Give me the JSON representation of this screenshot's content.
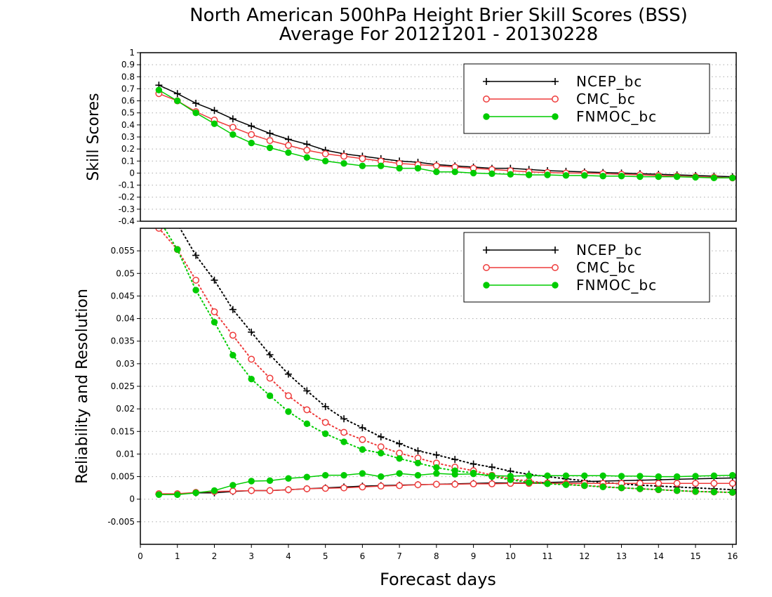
{
  "title": {
    "line1": "North American 500hPa Height Brier Skill Scores (BSS)",
    "line2": "Average For 20121201 - 20130228"
  },
  "colors": {
    "NCEP_bc": "#000000",
    "CMC_bc": "#ee3b3b",
    "FNMOC_bc": "#00cc00"
  },
  "chart_data": [
    {
      "type": "line",
      "ylabel": "Skill Scores",
      "xlabel": "",
      "xlim": [
        0,
        16.1
      ],
      "ylim": [
        -0.4,
        1
      ],
      "yticks": [
        "1",
        "0.9",
        "0.8",
        "0.7",
        "0.6",
        "0.5",
        "0.4",
        "0.3",
        "0.2",
        "0.1",
        "0",
        "-0.1",
        "-0.2",
        "-0.3",
        "-0.4"
      ],
      "grid": true,
      "legend_position": "top-right",
      "x": [
        0.5,
        1,
        1.5,
        2,
        2.5,
        3,
        3.5,
        4,
        4.5,
        5,
        5.5,
        6,
        6.5,
        7,
        7.5,
        8,
        8.5,
        9,
        9.5,
        10,
        10.5,
        11,
        11.5,
        12,
        12.5,
        13,
        13.5,
        14,
        14.5,
        15,
        15.5,
        16
      ],
      "series": [
        {
          "name": "NCEP_bc",
          "marker": "plus",
          "style": "solid",
          "values": [
            0.73,
            0.66,
            0.58,
            0.52,
            0.45,
            0.39,
            0.33,
            0.28,
            0.24,
            0.19,
            0.16,
            0.14,
            0.12,
            0.1,
            0.09,
            0.07,
            0.06,
            0.05,
            0.04,
            0.04,
            0.03,
            0.02,
            0.015,
            0.01,
            0.005,
            0.0,
            -0.005,
            -0.01,
            -0.015,
            -0.02,
            -0.025,
            -0.03
          ]
        },
        {
          "name": "CMC_bc",
          "marker": "open-circle",
          "style": "solid",
          "values": [
            0.66,
            0.6,
            0.51,
            0.44,
            0.38,
            0.32,
            0.27,
            0.23,
            0.19,
            0.16,
            0.14,
            0.12,
            0.1,
            0.08,
            0.07,
            0.06,
            0.05,
            0.04,
            0.03,
            0.02,
            0.01,
            0.005,
            0.0,
            0.0,
            -0.005,
            -0.01,
            -0.015,
            -0.02,
            -0.025,
            -0.03,
            -0.035,
            -0.04
          ]
        },
        {
          "name": "FNMOC_bc",
          "marker": "filled-circle",
          "style": "solid",
          "values": [
            0.69,
            0.6,
            0.5,
            0.41,
            0.32,
            0.25,
            0.21,
            0.17,
            0.13,
            0.1,
            0.08,
            0.06,
            0.06,
            0.04,
            0.04,
            0.01,
            0.01,
            0.0,
            -0.005,
            -0.01,
            -0.015,
            -0.015,
            -0.02,
            -0.02,
            -0.025,
            -0.025,
            -0.03,
            -0.03,
            -0.03,
            -0.035,
            -0.04,
            -0.04
          ]
        }
      ]
    },
    {
      "type": "line",
      "ylabel": "Reliability and Resolution",
      "xlabel": "Forecast days",
      "xlim": [
        0,
        16.1
      ],
      "ylim": [
        -0.01,
        0.06
      ],
      "xticks": [
        "0",
        "1",
        "2",
        "3",
        "4",
        "5",
        "6",
        "7",
        "8",
        "9",
        "10",
        "11",
        "12",
        "13",
        "14",
        "15",
        "16"
      ],
      "yticks": [
        "0.055",
        "0.05",
        "0.045",
        "0.04",
        "0.035",
        "0.03",
        "0.025",
        "0.02",
        "0.015",
        "0.01",
        "0.005",
        "0",
        "-0.005"
      ],
      "grid": true,
      "legend_position": "top-right",
      "x": [
        0.5,
        1,
        1.5,
        2,
        2.5,
        3,
        3.5,
        4,
        4.5,
        5,
        5.5,
        6,
        6.5,
        7,
        7.5,
        8,
        8.5,
        9,
        9.5,
        10,
        10.5,
        11,
        11.5,
        12,
        12.5,
        13,
        13.5,
        14,
        14.5,
        15,
        15.5,
        16
      ],
      "series": [
        {
          "name": "NCEP_bc",
          "component": "reliability",
          "marker": "plus",
          "style": "solid",
          "values": [
            0.0011,
            0.0011,
            0.0014,
            0.0014,
            0.0017,
            0.0019,
            0.0019,
            0.0021,
            0.0023,
            0.0025,
            0.0027,
            0.0029,
            0.003,
            0.0031,
            0.0032,
            0.0033,
            0.0034,
            0.0035,
            0.0036,
            0.0036,
            0.0036,
            0.0037,
            0.0038,
            0.0039,
            0.004,
            0.0041,
            0.0042,
            0.0043,
            0.0044,
            0.0045,
            0.0046,
            0.0047
          ]
        },
        {
          "name": "NCEP_bc",
          "component": "resolution",
          "marker": "plus",
          "style": "dotted",
          "values": [
            0.064,
            0.061,
            0.054,
            0.0485,
            0.042,
            0.037,
            0.032,
            0.0277,
            0.024,
            0.0205,
            0.0178,
            0.0158,
            0.0138,
            0.0123,
            0.0107,
            0.0098,
            0.0088,
            0.0078,
            0.0071,
            0.0062,
            0.0055,
            0.005,
            0.0045,
            0.0041,
            0.0037,
            0.0034,
            0.0031,
            0.0029,
            0.0027,
            0.0025,
            0.0023,
            0.0021
          ]
        },
        {
          "name": "CMC_bc",
          "component": "reliability",
          "marker": "open-circle",
          "style": "solid",
          "values": [
            0.0012,
            0.0012,
            0.0015,
            0.0017,
            0.0018,
            0.0019,
            0.0019,
            0.0021,
            0.0023,
            0.0024,
            0.0025,
            0.0027,
            0.0029,
            0.003,
            0.0032,
            0.0033,
            0.0033,
            0.0034,
            0.0034,
            0.0035,
            0.0035,
            0.0035,
            0.0035,
            0.0035,
            0.0035,
            0.0035,
            0.0035,
            0.0035,
            0.0035,
            0.0035,
            0.0035,
            0.0035
          ]
        },
        {
          "name": "CMC_bc",
          "component": "resolution",
          "marker": "open-circle",
          "style": "dotted",
          "values": [
            0.06,
            0.0553,
            0.0485,
            0.0415,
            0.0363,
            0.031,
            0.0268,
            0.0229,
            0.0198,
            0.017,
            0.0148,
            0.0132,
            0.0116,
            0.0102,
            0.0091,
            0.008,
            0.0071,
            0.0063,
            0.0053,
            0.0045,
            0.004,
            0.0036,
            0.0033,
            0.003,
            0.0028,
            0.0025,
            0.0023,
            0.0021,
            0.0019,
            0.0017,
            0.0016,
            0.0015
          ]
        },
        {
          "name": "FNMOC_bc",
          "component": "reliability",
          "marker": "filled-circle",
          "style": "solid",
          "values": [
            0.001,
            0.001,
            0.0014,
            0.0019,
            0.0031,
            0.004,
            0.0041,
            0.0046,
            0.0049,
            0.0053,
            0.0053,
            0.0057,
            0.005,
            0.0057,
            0.0053,
            0.0057,
            0.0055,
            0.0056,
            0.0052,
            0.0051,
            0.0052,
            0.0052,
            0.0052,
            0.0052,
            0.0052,
            0.0051,
            0.0051,
            0.005,
            0.005,
            0.0051,
            0.0052,
            0.0053
          ]
        },
        {
          "name": "FNMOC_bc",
          "component": "resolution",
          "marker": "filled-circle",
          "style": "dotted",
          "values": [
            0.062,
            0.0553,
            0.0463,
            0.0392,
            0.0319,
            0.0266,
            0.0229,
            0.0194,
            0.0167,
            0.0145,
            0.0127,
            0.011,
            0.0102,
            0.009,
            0.008,
            0.007,
            0.0063,
            0.0058,
            0.005,
            0.0043,
            0.0037,
            0.0034,
            0.0032,
            0.003,
            0.0027,
            0.0025,
            0.0023,
            0.0021,
            0.0019,
            0.0017,
            0.0016,
            0.0015
          ]
        }
      ]
    }
  ]
}
